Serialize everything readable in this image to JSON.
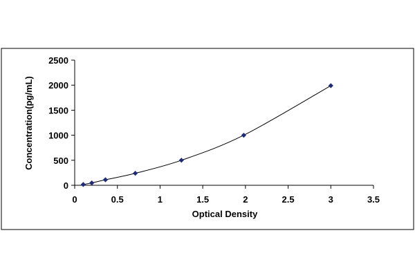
{
  "chart_data": {
    "type": "scatter",
    "title": "",
    "xlabel": "Optical Density",
    "ylabel": "Concentration(pg/mL)",
    "xlim": [
      0,
      3.5
    ],
    "ylim": [
      0,
      2500
    ],
    "x_ticks": [
      0,
      0.5,
      1,
      1.5,
      2,
      2.5,
      3,
      3.5
    ],
    "x_tick_labels": [
      "0",
      "0.5",
      "1",
      "1.5",
      "2",
      "2.5",
      "3",
      "3.5"
    ],
    "y_ticks": [
      0,
      500,
      1000,
      1500,
      2000,
      2500
    ],
    "y_tick_labels": [
      "0",
      "500",
      "1000",
      "1500",
      "2000",
      "2500"
    ],
    "grid": false,
    "legend": "none",
    "fit_line": "smooth curve through points",
    "series": [
      {
        "marker": "diamond",
        "color": "#1f2a7a",
        "line_color": "#000000",
        "points": [
          {
            "x": 0.1,
            "y": 16
          },
          {
            "x": 0.2,
            "y": 47
          },
          {
            "x": 0.36,
            "y": 110
          },
          {
            "x": 0.71,
            "y": 240
          },
          {
            "x": 1.25,
            "y": 500
          },
          {
            "x": 1.98,
            "y": 1000
          },
          {
            "x": 3.0,
            "y": 1990
          }
        ]
      }
    ]
  }
}
